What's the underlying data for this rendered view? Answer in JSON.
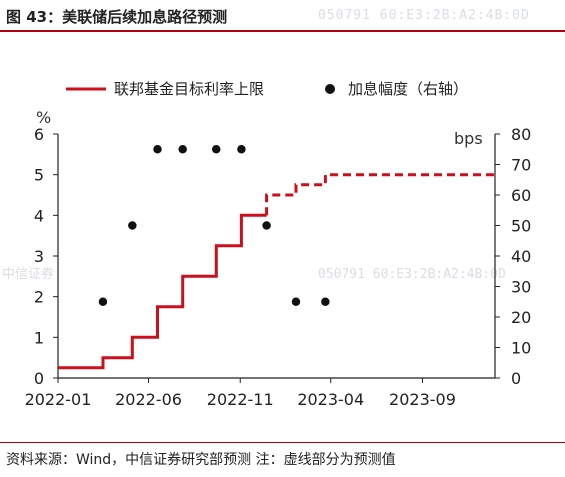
{
  "title": "图 43：美联储后续加息路径预测",
  "watermark": {
    "top_code": "050791   60:E3:2B:A2:4B:0D",
    "mid_left": "中信证券",
    "mid_code": "050791   60:E3:2B:A2:4B:0D"
  },
  "source_note": "资料来源：Wind，中信证券研究部预测  注：虚线部分为预测值",
  "colors": {
    "line": "#cc0f1b",
    "dot": "#111111",
    "accent_rule": "#b00010"
  },
  "chart_data": {
    "type": "line",
    "left_unit": "%",
    "right_unit": "bps",
    "x_ticks": [
      "2022-01",
      "2022-06",
      "2022-11",
      "2023-04",
      "2023-09"
    ],
    "ylim_left": [
      0,
      6
    ],
    "ylim_right": [
      0,
      80
    ],
    "left_ticks": [
      "0",
      "1",
      "2",
      "3",
      "4",
      "5",
      "6"
    ],
    "right_ticks": [
      "0",
      "10",
      "20",
      "30",
      "40",
      "50",
      "60",
      "70",
      "80"
    ],
    "legend": [
      {
        "label": "联邦基金目标利率上限",
        "marker": "line"
      },
      {
        "label": "加息幅度（右轴）",
        "marker": "dot"
      }
    ],
    "series": [
      {
        "name": "联邦基金目标利率上限",
        "axis": "left",
        "step": true,
        "x": [
          "2022-01-01",
          "2022-03-17",
          "2022-05-05",
          "2022-06-16",
          "2022-07-28",
          "2022-09-22",
          "2022-11-03",
          "2022-12-15",
          "2023-02-02",
          "2023-03-23",
          "2023-12-31"
        ],
        "y": [
          0.25,
          0.5,
          1.0,
          1.75,
          2.5,
          3.25,
          4.0,
          4.5,
          4.75,
          5.0,
          5.0
        ],
        "forecast_from": "2022-12-15"
      },
      {
        "name": "加息幅度（右轴）",
        "axis": "right",
        "type": "scatter",
        "x": [
          "2022-03-17",
          "2022-05-05",
          "2022-06-16",
          "2022-07-28",
          "2022-09-22",
          "2022-11-03",
          "2022-12-15",
          "2023-02-02",
          "2023-03-23"
        ],
        "y": [
          25,
          50,
          75,
          75,
          75,
          75,
          50,
          25,
          25
        ]
      }
    ]
  }
}
